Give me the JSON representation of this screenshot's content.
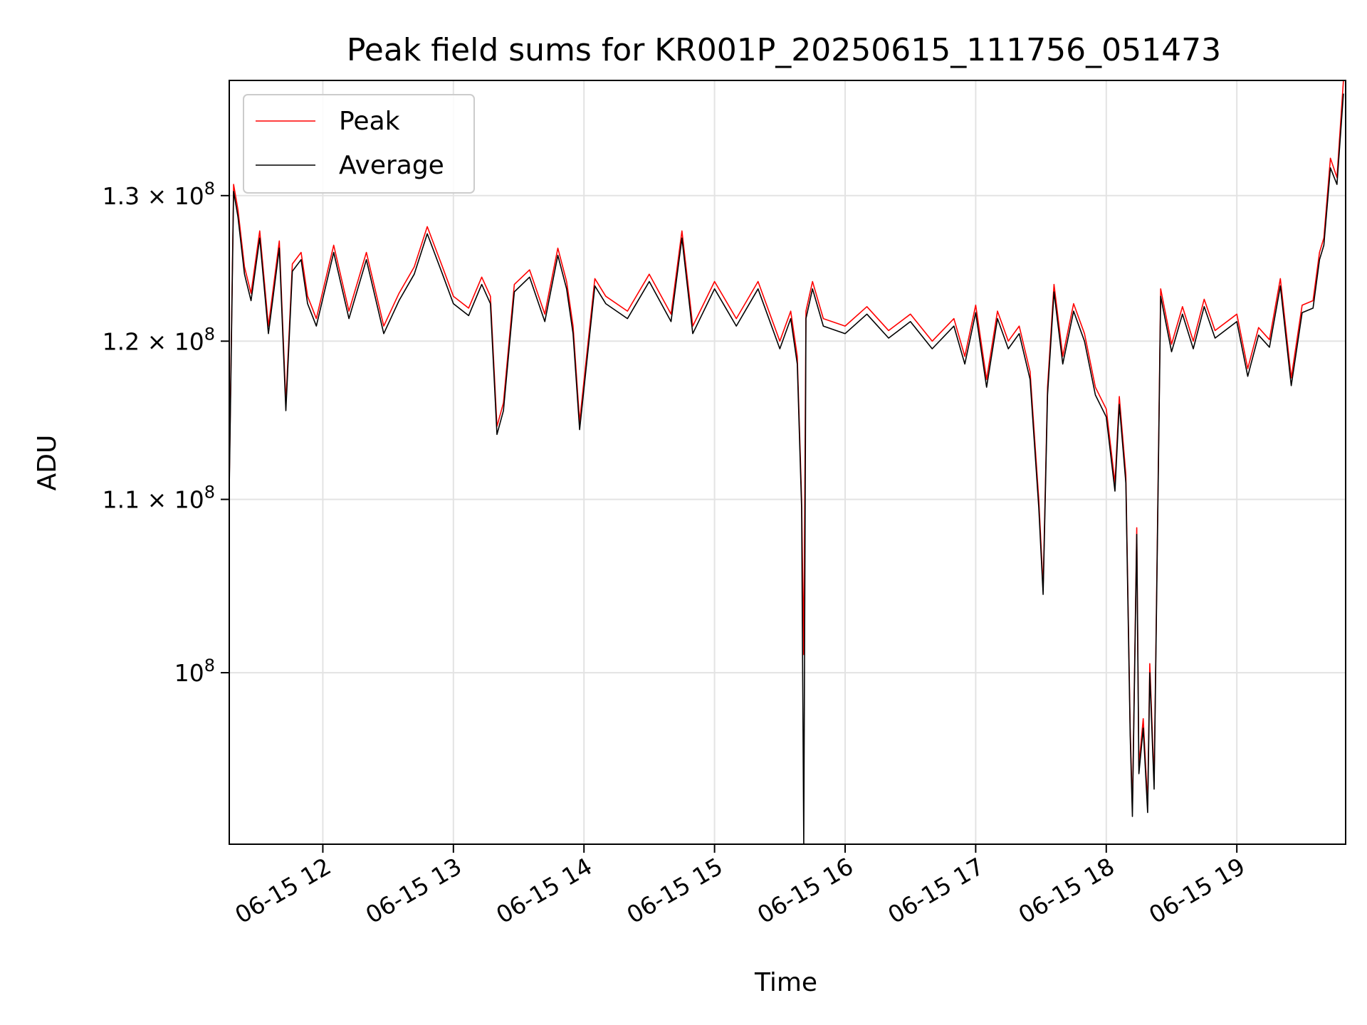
{
  "chart_data": {
    "type": "line",
    "title": "Peak field sums for KR001P_20250615_111756_051473",
    "xlabel": "Time",
    "ylabel": "ADU",
    "yscale": "log",
    "xlim": [
      "2025-06-15T11:17",
      "2025-06-15T19:50"
    ],
    "ylim": [
      91000000,
      138500000
    ],
    "grid": true,
    "legend": "top-left",
    "x_ticks": [
      {
        "value": "2025-06-15T12:00",
        "label": "06-15 12"
      },
      {
        "value": "2025-06-15T13:00",
        "label": "06-15 13"
      },
      {
        "value": "2025-06-15T14:00",
        "label": "06-15 14"
      },
      {
        "value": "2025-06-15T15:00",
        "label": "06-15 15"
      },
      {
        "value": "2025-06-15T16:00",
        "label": "06-15 16"
      },
      {
        "value": "2025-06-15T17:00",
        "label": "06-15 17"
      },
      {
        "value": "2025-06-15T18:00",
        "label": "06-15 18"
      },
      {
        "value": "2025-06-15T19:00",
        "label": "06-15 19"
      }
    ],
    "y_ticks": [
      {
        "value": 100000000,
        "mantissa": "",
        "exp": "8"
      },
      {
        "value": 110000000,
        "mantissa": "1.1 × ",
        "exp": "8"
      },
      {
        "value": 120000000,
        "mantissa": "1.2 × ",
        "exp": "8"
      },
      {
        "value": 130000000,
        "mantissa": "1.3 × ",
        "exp": "8"
      }
    ],
    "series": [
      {
        "name": "Peak",
        "color": "#ff0000",
        "x": [
          "2025-06-15T11:17",
          "2025-06-15T11:19",
          "2025-06-15T11:21",
          "2025-06-15T11:24",
          "2025-06-15T11:27",
          "2025-06-15T11:31",
          "2025-06-15T11:35",
          "2025-06-15T11:40",
          "2025-06-15T11:43",
          "2025-06-15T11:46",
          "2025-06-15T11:50",
          "2025-06-15T11:53",
          "2025-06-15T11:57",
          "2025-06-15T12:05",
          "2025-06-15T12:12",
          "2025-06-15T12:20",
          "2025-06-15T12:28",
          "2025-06-15T12:35",
          "2025-06-15T12:42",
          "2025-06-15T12:48",
          "2025-06-15T12:55",
          "2025-06-15T13:00",
          "2025-06-15T13:07",
          "2025-06-15T13:13",
          "2025-06-15T13:17",
          "2025-06-15T13:20",
          "2025-06-15T13:23",
          "2025-06-15T13:28",
          "2025-06-15T13:35",
          "2025-06-15T13:42",
          "2025-06-15T13:48",
          "2025-06-15T13:52",
          "2025-06-15T13:55",
          "2025-06-15T13:58",
          "2025-06-15T14:05",
          "2025-06-15T14:10",
          "2025-06-15T14:20",
          "2025-06-15T14:30",
          "2025-06-15T14:40",
          "2025-06-15T14:45",
          "2025-06-15T14:50",
          "2025-06-15T15:00",
          "2025-06-15T15:10",
          "2025-06-15T15:20",
          "2025-06-15T15:30",
          "2025-06-15T15:35",
          "2025-06-15T15:38",
          "2025-06-15T15:40",
          "2025-06-15T15:41",
          "2025-06-15T15:42",
          "2025-06-15T15:45",
          "2025-06-15T15:50",
          "2025-06-15T16:00",
          "2025-06-15T16:10",
          "2025-06-15T16:20",
          "2025-06-15T16:30",
          "2025-06-15T16:40",
          "2025-06-15T16:50",
          "2025-06-15T16:55",
          "2025-06-15T17:00",
          "2025-06-15T17:05",
          "2025-06-15T17:10",
          "2025-06-15T17:15",
          "2025-06-15T17:20",
          "2025-06-15T17:25",
          "2025-06-15T17:29",
          "2025-06-15T17:31",
          "2025-06-15T17:33",
          "2025-06-15T17:36",
          "2025-06-15T17:40",
          "2025-06-15T17:45",
          "2025-06-15T17:50",
          "2025-06-15T17:55",
          "2025-06-15T18:00",
          "2025-06-15T18:04",
          "2025-06-15T18:06",
          "2025-06-15T18:09",
          "2025-06-15T18:11",
          "2025-06-15T18:12",
          "2025-06-15T18:14",
          "2025-06-15T18:15",
          "2025-06-15T18:17",
          "2025-06-15T18:19",
          "2025-06-15T18:20",
          "2025-06-15T18:22",
          "2025-06-15T18:25",
          "2025-06-15T18:30",
          "2025-06-15T18:35",
          "2025-06-15T18:40",
          "2025-06-15T18:45",
          "2025-06-15T18:50",
          "2025-06-15T19:00",
          "2025-06-15T19:05",
          "2025-06-15T19:10",
          "2025-06-15T19:15",
          "2025-06-15T19:20",
          "2025-06-15T19:25",
          "2025-06-15T19:30",
          "2025-06-15T19:35",
          "2025-06-15T19:38",
          "2025-06-15T19:40",
          "2025-06-15T19:43",
          "2025-06-15T19:46",
          "2025-06-15T19:49"
        ],
        "values": [
          111000000,
          130800000,
          129000000,
          125000000,
          123200000,
          127500000,
          121000000,
          126800000,
          116000000,
          125200000,
          126000000,
          123000000,
          121500000,
          126500000,
          122000000,
          126000000,
          121000000,
          123200000,
          125000000,
          127800000,
          125000000,
          123000000,
          122200000,
          124300000,
          123000000,
          114500000,
          116000000,
          123800000,
          124800000,
          121800000,
          126300000,
          124000000,
          121000000,
          114800000,
          124200000,
          123000000,
          122000000,
          124500000,
          121800000,
          127500000,
          121000000,
          124000000,
          121500000,
          124000000,
          120000000,
          122000000,
          119000000,
          110000000,
          101000000,
          122000000,
          124000000,
          121500000,
          121000000,
          122300000,
          120700000,
          121800000,
          120000000,
          121500000,
          119000000,
          122400000,
          117500000,
          122000000,
          120000000,
          121000000,
          118000000,
          110000000,
          104800000,
          117000000,
          123800000,
          119000000,
          122500000,
          120500000,
          117000000,
          115600000,
          111000000,
          116400000,
          111500000,
          97000000,
          92800000,
          108300000,
          95000000,
          97500000,
          93000000,
          100500000,
          94200000,
          123500000,
          119800000,
          122300000,
          120000000,
          122800000,
          120700000,
          121800000,
          118200000,
          120900000,
          120100000,
          124200000,
          117600000,
          122400000,
          122700000,
          126000000,
          127000000,
          132700000,
          131300000,
          138500000
        ]
      },
      {
        "name": "Average",
        "color": "#000000",
        "x": [
          "2025-06-15T11:17",
          "2025-06-15T11:19",
          "2025-06-15T11:21",
          "2025-06-15T11:24",
          "2025-06-15T11:27",
          "2025-06-15T11:31",
          "2025-06-15T11:35",
          "2025-06-15T11:40",
          "2025-06-15T11:43",
          "2025-06-15T11:46",
          "2025-06-15T11:50",
          "2025-06-15T11:53",
          "2025-06-15T11:57",
          "2025-06-15T12:05",
          "2025-06-15T12:12",
          "2025-06-15T12:20",
          "2025-06-15T12:28",
          "2025-06-15T12:35",
          "2025-06-15T12:42",
          "2025-06-15T12:48",
          "2025-06-15T12:55",
          "2025-06-15T13:00",
          "2025-06-15T13:07",
          "2025-06-15T13:13",
          "2025-06-15T13:17",
          "2025-06-15T13:20",
          "2025-06-15T13:23",
          "2025-06-15T13:28",
          "2025-06-15T13:35",
          "2025-06-15T13:42",
          "2025-06-15T13:48",
          "2025-06-15T13:52",
          "2025-06-15T13:55",
          "2025-06-15T13:58",
          "2025-06-15T14:05",
          "2025-06-15T14:10",
          "2025-06-15T14:20",
          "2025-06-15T14:30",
          "2025-06-15T14:40",
          "2025-06-15T14:45",
          "2025-06-15T14:50",
          "2025-06-15T15:00",
          "2025-06-15T15:10",
          "2025-06-15T15:20",
          "2025-06-15T15:30",
          "2025-06-15T15:35",
          "2025-06-15T15:38",
          "2025-06-15T15:40",
          "2025-06-15T15:41",
          "2025-06-15T15:42",
          "2025-06-15T15:45",
          "2025-06-15T15:50",
          "2025-06-15T16:00",
          "2025-06-15T16:10",
          "2025-06-15T16:20",
          "2025-06-15T16:30",
          "2025-06-15T16:40",
          "2025-06-15T16:50",
          "2025-06-15T16:55",
          "2025-06-15T17:00",
          "2025-06-15T17:05",
          "2025-06-15T17:10",
          "2025-06-15T17:15",
          "2025-06-15T17:20",
          "2025-06-15T17:25",
          "2025-06-15T17:29",
          "2025-06-15T17:31",
          "2025-06-15T17:33",
          "2025-06-15T17:36",
          "2025-06-15T17:40",
          "2025-06-15T17:45",
          "2025-06-15T17:50",
          "2025-06-15T17:55",
          "2025-06-15T18:00",
          "2025-06-15T18:04",
          "2025-06-15T18:06",
          "2025-06-15T18:09",
          "2025-06-15T18:11",
          "2025-06-15T18:12",
          "2025-06-15T18:14",
          "2025-06-15T18:15",
          "2025-06-15T18:17",
          "2025-06-15T18:19",
          "2025-06-15T18:20",
          "2025-06-15T18:22",
          "2025-06-15T18:25",
          "2025-06-15T18:30",
          "2025-06-15T18:35",
          "2025-06-15T18:40",
          "2025-06-15T18:45",
          "2025-06-15T18:50",
          "2025-06-15T19:00",
          "2025-06-15T19:05",
          "2025-06-15T19:10",
          "2025-06-15T19:15",
          "2025-06-15T19:20",
          "2025-06-15T19:25",
          "2025-06-15T19:30",
          "2025-06-15T19:35",
          "2025-06-15T19:38",
          "2025-06-15T19:40",
          "2025-06-15T19:43",
          "2025-06-15T19:46",
          "2025-06-15T19:49"
        ],
        "values": [
          110600000,
          130300000,
          128500000,
          124500000,
          122700000,
          127000000,
          120500000,
          126300000,
          115500000,
          124700000,
          125500000,
          122500000,
          121000000,
          126000000,
          121500000,
          125500000,
          120500000,
          122700000,
          124500000,
          127300000,
          124500000,
          122500000,
          121700000,
          123800000,
          122500000,
          114000000,
          115500000,
          123300000,
          124300000,
          121300000,
          125800000,
          123500000,
          120500000,
          114300000,
          123700000,
          122500000,
          121500000,
          124000000,
          121300000,
          127000000,
          120500000,
          123500000,
          121000000,
          123500000,
          119500000,
          121500000,
          118500000,
          109500000,
          91000000,
          121500000,
          123500000,
          121000000,
          120500000,
          121800000,
          120200000,
          121300000,
          119500000,
          121000000,
          118500000,
          121900000,
          117000000,
          121500000,
          119500000,
          120500000,
          117500000,
          109500000,
          104400000,
          116500000,
          123300000,
          118500000,
          122000000,
          120000000,
          116500000,
          115100000,
          110500000,
          115900000,
          111000000,
          96600000,
          92400000,
          107900000,
          94600000,
          97000000,
          92600000,
          100000000,
          93800000,
          123000000,
          119300000,
          121800000,
          119500000,
          122300000,
          120200000,
          121300000,
          117700000,
          120400000,
          119600000,
          123700000,
          117100000,
          121900000,
          122200000,
          125500000,
          126500000,
          132000000,
          130800000,
          137500000
        ]
      }
    ]
  }
}
